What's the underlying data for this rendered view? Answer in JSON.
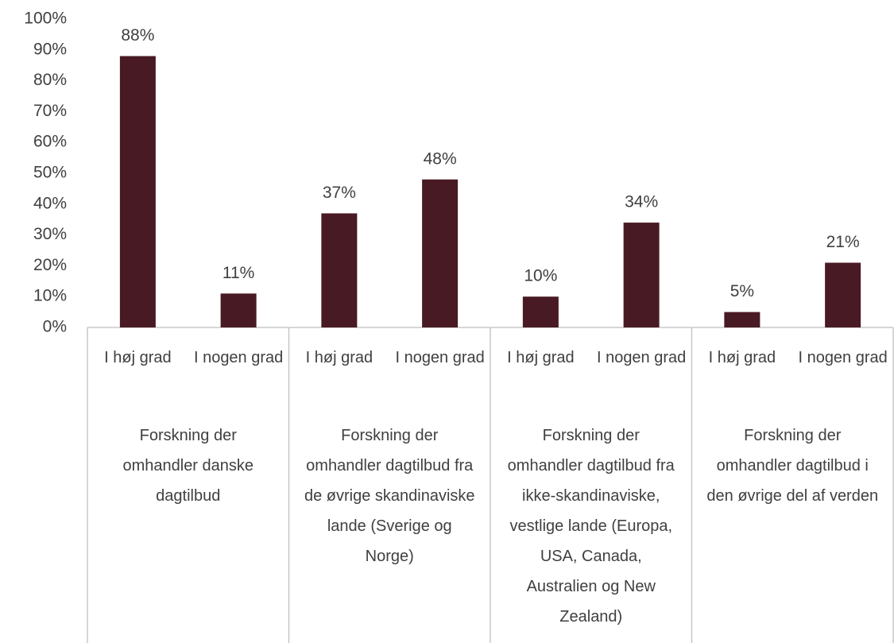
{
  "chart_data": {
    "type": "bar",
    "categories": [
      "I høj grad",
      "I nogen grad",
      "I høj grad",
      "I nogen grad",
      "I høj grad",
      "I nogen grad",
      "I høj grad",
      "I nogen grad"
    ],
    "groups": [
      "Forskning der omhandler danske dagtilbud",
      "Forskning der omhandler dagtilbud fra de øvrige skandinaviske lande (Sverige og Norge)",
      "Forskning der omhandler dagtilbud fra ikke-skandinaviske, vestlige lande (Europa, USA, Canada, Australien og New Zealand)",
      "Forskning der omhandler dagtilbud i den øvrige del af verden"
    ],
    "values": [
      88,
      11,
      37,
      48,
      10,
      34,
      5,
      21
    ],
    "value_labels": [
      "88%",
      "11%",
      "37%",
      "48%",
      "10%",
      "34%",
      "5%",
      "21%"
    ],
    "color": "#481a24",
    "ylim": [
      0,
      100
    ],
    "yticks": [
      {
        "value": 0,
        "label": "0%"
      },
      {
        "value": 10,
        "label": "10%"
      },
      {
        "value": 20,
        "label": "20%"
      },
      {
        "value": 30,
        "label": "30%"
      },
      {
        "value": 40,
        "label": "40%"
      },
      {
        "value": 50,
        "label": "50%"
      },
      {
        "value": 60,
        "label": "60%"
      },
      {
        "value": 70,
        "label": "70%"
      },
      {
        "value": 80,
        "label": "80%"
      },
      {
        "value": 90,
        "label": "90%"
      },
      {
        "value": 100,
        "label": "100%"
      }
    ],
    "grid": false
  }
}
